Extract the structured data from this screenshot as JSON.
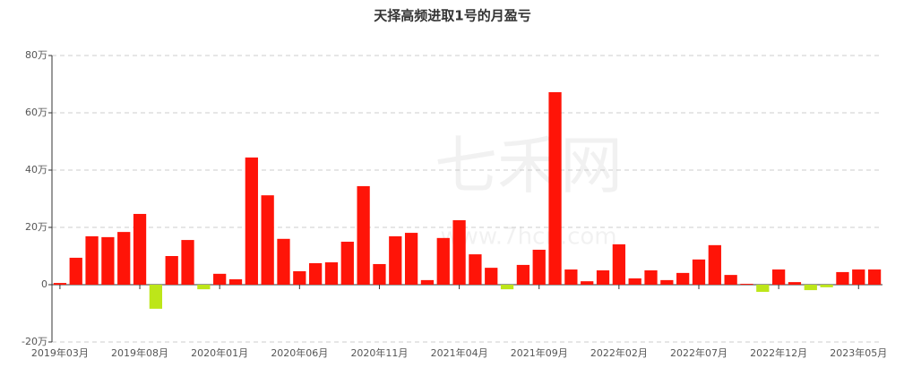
{
  "chart_data": {
    "type": "bar",
    "title": "天择高频进取1号的月盈亏",
    "watermark": "七禾网",
    "watermark_url": "www.7hcn.com",
    "categories": [
      "2019年03月",
      null,
      null,
      null,
      null,
      "2019年08月",
      null,
      null,
      null,
      null,
      "2020年01月",
      null,
      null,
      null,
      null,
      "2020年06月",
      null,
      null,
      null,
      null,
      "2020年11月",
      null,
      null,
      null,
      null,
      "2021年04月",
      null,
      null,
      null,
      null,
      "2021年09月",
      null,
      null,
      null,
      null,
      "2022年02月",
      null,
      null,
      null,
      null,
      "2022年07月",
      null,
      null,
      null,
      null,
      "2022年12月",
      null,
      null,
      null,
      null,
      "2023年05月",
      null
    ],
    "values": [
      0.6,
      9.4,
      16.9,
      16.6,
      18.4,
      24.7,
      -8.4,
      10,
      15.6,
      -1.6,
      3.8,
      1.9,
      44.4,
      31.2,
      16,
      4.7,
      7.5,
      7.8,
      15,
      34.4,
      7.2,
      16.9,
      18.1,
      1.6,
      16.3,
      22.5,
      10.6,
      5.9,
      -1.6,
      6.9,
      12.2,
      67.2,
      5.3,
      1.2,
      5,
      14.1,
      2.2,
      5,
      1.6,
      4.1,
      8.8,
      13.8,
      3.4,
      0.3,
      -2.5,
      5.3,
      0.9,
      -1.9,
      -0.9,
      4.4,
      5.3,
      5.3
    ],
    "colors": {
      "positive": "#ff1408",
      "negative": "#bde619"
    },
    "ylim": [
      -20,
      80
    ],
    "yticks": [
      {
        "value": -20,
        "label": "-20万"
      },
      {
        "value": 0,
        "label": "0"
      },
      {
        "value": 20,
        "label": "20万"
      },
      {
        "value": 40,
        "label": "40万"
      },
      {
        "value": 60,
        "label": "60万"
      },
      {
        "value": 80,
        "label": "80万"
      }
    ],
    "grid": true
  }
}
